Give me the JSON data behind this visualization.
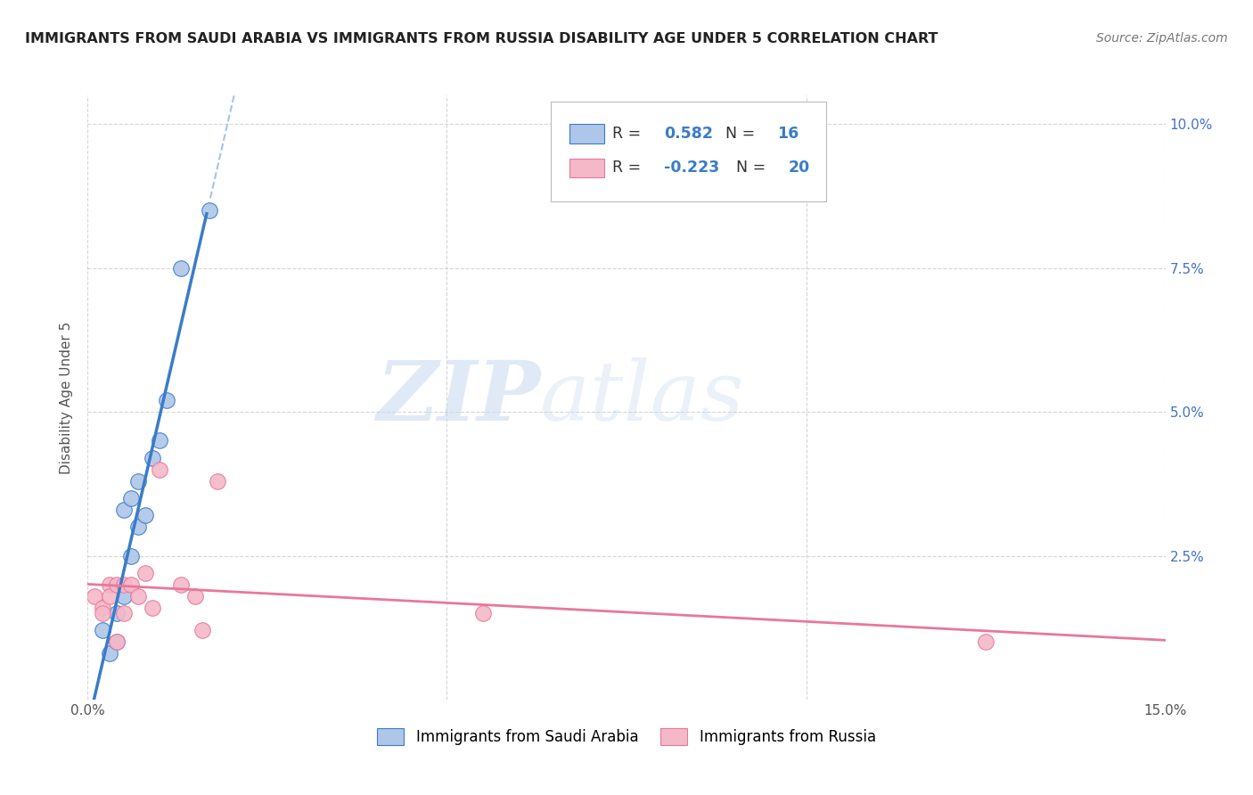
{
  "title": "IMMIGRANTS FROM SAUDI ARABIA VS IMMIGRANTS FROM RUSSIA DISABILITY AGE UNDER 5 CORRELATION CHART",
  "source": "Source: ZipAtlas.com",
  "ylabel": "Disability Age Under 5",
  "xlim": [
    0,
    0.15
  ],
  "ylim": [
    0,
    0.105
  ],
  "saudi_R": "0.582",
  "saudi_N": "16",
  "russia_R": "-0.223",
  "russia_N": "20",
  "saudi_color": "#aec6e8",
  "saudi_line_color": "#3a7cc9",
  "russia_color": "#f4b8c8",
  "russia_line_color": "#e8789a",
  "saudi_x": [
    0.002,
    0.003,
    0.004,
    0.004,
    0.005,
    0.005,
    0.006,
    0.006,
    0.007,
    0.007,
    0.008,
    0.009,
    0.01,
    0.011,
    0.013,
    0.017
  ],
  "saudi_y": [
    0.012,
    0.008,
    0.015,
    0.01,
    0.033,
    0.018,
    0.035,
    0.025,
    0.038,
    0.03,
    0.032,
    0.042,
    0.045,
    0.052,
    0.075,
    0.085
  ],
  "russia_x": [
    0.001,
    0.002,
    0.002,
    0.003,
    0.003,
    0.004,
    0.004,
    0.005,
    0.005,
    0.006,
    0.007,
    0.008,
    0.009,
    0.01,
    0.013,
    0.015,
    0.016,
    0.018,
    0.055,
    0.125
  ],
  "russia_y": [
    0.018,
    0.016,
    0.015,
    0.02,
    0.018,
    0.02,
    0.01,
    0.02,
    0.015,
    0.02,
    0.018,
    0.022,
    0.016,
    0.04,
    0.02,
    0.018,
    0.012,
    0.038,
    0.015,
    0.01
  ],
  "watermark_zip": "ZIP",
  "watermark_atlas": "atlas",
  "background_color": "#ffffff",
  "grid_color": "#cccccc"
}
